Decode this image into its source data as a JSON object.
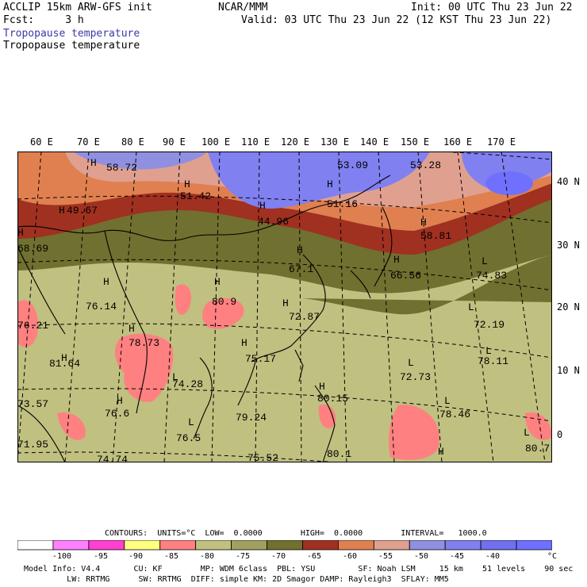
{
  "header": {
    "left_line1": "ACCLIP 15km ARW-GFS init",
    "left_line2": "Fcst:     3 h",
    "center": "NCAR/MMM",
    "right_line1": "Init: 00 UTC Thu 23 Jun 22",
    "right_line2": "Valid: 03 UTC Thu 23 Jun 22 (12 KST Thu 23 Jun 22)",
    "field_title_1": "Tropopause temperature",
    "field_title_2": "Tropopause temperature",
    "field_title_1_color": "#3a3aa8"
  },
  "lon_labels": [
    "60 E",
    "70 E",
    "80 E",
    "90 E",
    "100 E",
    "110 E",
    "120 E",
    "130 E",
    "140 E",
    "150 E",
    "160 E",
    "170 E"
  ],
  "lat_labels": [
    "40 N",
    "30 N",
    "20 N",
    "10 N",
    "0"
  ],
  "map_labels": [
    {
      "text": "58.72"
    },
    {
      "text": "53.09"
    },
    {
      "text": "53.28"
    },
    {
      "text": "51.42"
    },
    {
      "text": "51.16"
    },
    {
      "text": "44.96"
    },
    {
      "text": "49.67"
    },
    {
      "text": "58.81"
    },
    {
      "text": "68.69"
    },
    {
      "text": "67.1"
    },
    {
      "text": "66.56"
    },
    {
      "text": "74.83"
    },
    {
      "text": "76.14"
    },
    {
      "text": "80.9"
    },
    {
      "text": "72.87"
    },
    {
      "text": "72.19"
    },
    {
      "text": "76.21"
    },
    {
      "text": "78.73"
    },
    {
      "text": "75.17"
    },
    {
      "text": "81.64"
    },
    {
      "text": "72.73"
    },
    {
      "text": "78.11"
    },
    {
      "text": "74.28"
    },
    {
      "text": "80.15"
    },
    {
      "text": "73.57"
    },
    {
      "text": "76.6"
    },
    {
      "text": "79.24"
    },
    {
      "text": "78.46"
    },
    {
      "text": "76.5"
    },
    {
      "text": "71.95"
    },
    {
      "text": "74.74"
    },
    {
      "text": "75.52"
    },
    {
      "text": "80.1"
    },
    {
      "text": "80.7"
    }
  ],
  "extrema_markers": [
    "H",
    "L"
  ],
  "contours_line": "CONTOURS:  UNITS=°C  LOW=  0.0000        HIGH=  0.0000        INTERVAL=   1000.0",
  "colorbar": {
    "colors": [
      "#ffffff",
      "#ff80ff",
      "#ff40d0",
      "#ffff80",
      "#ff8080",
      "#c0c080",
      "#a0a060",
      "#707030",
      "#a03020",
      "#e08050",
      "#e0a090",
      "#9090e0",
      "#8080f0",
      "#7070f0",
      "#7070ff"
    ],
    "tick_labels": [
      "-100",
      "-95",
      "-90",
      "-85",
      "-80",
      "-75",
      "-70",
      "-65",
      "-60",
      "-55",
      "-50",
      "-45",
      "-40",
      "°C"
    ]
  },
  "footer": {
    "line1": "Model Info: V4.4       CU: KF        MP: WDM 6class  PBL: YSU         SF: Noah LSM     15 km    51 levels    90 sec",
    "line2": "         LW: RRTMG      SW: RRTMG  DIFF: simple KM: 2D Smagor DAMP: Rayleigh3  SFLAY: MM5"
  }
}
